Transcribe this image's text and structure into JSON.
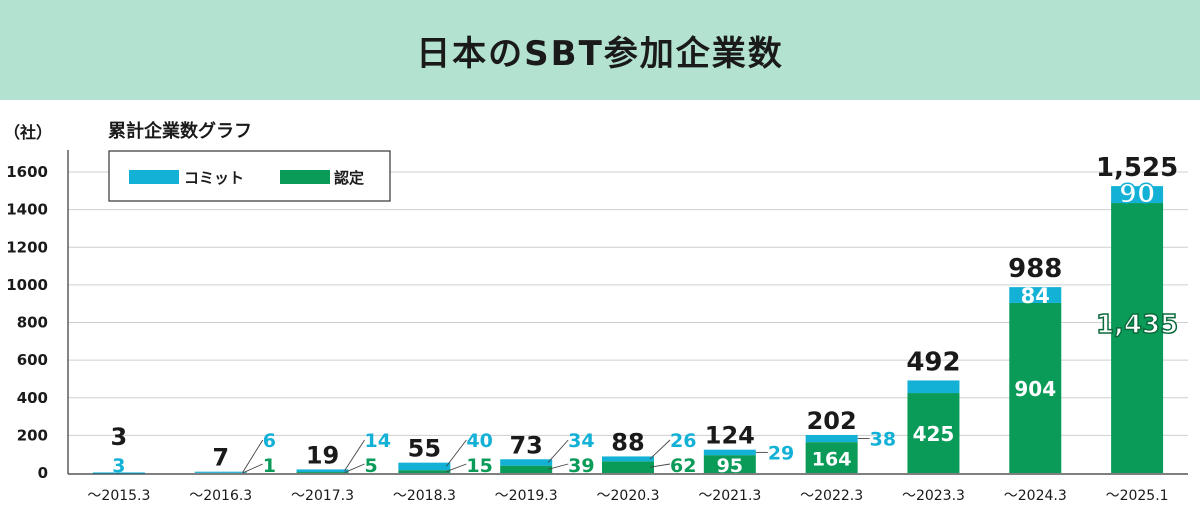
{
  "header": {
    "title": "日本のSBT参加企業数"
  },
  "chart_data": {
    "type": "bar",
    "stacked": true,
    "title": "日本のSBT参加企業数",
    "subtitle": "累計企業数グラフ",
    "ylabel": "（社）",
    "ylim": [
      0,
      1700
    ],
    "yticks": [
      0,
      200,
      400,
      600,
      800,
      1000,
      1200,
      1400,
      1600
    ],
    "grid": true,
    "legend_position": "top-left",
    "categories": [
      "～2015.3",
      "～2016.3",
      "～2017.3",
      "～2018.3",
      "～2019.3",
      "～2020.3",
      "～2021.3",
      "～2022.3",
      "～2023.3",
      "～2024.3",
      "～2025.1"
    ],
    "series": [
      {
        "name": "認定",
        "color": "#0a9b59",
        "values": [
          0,
          1,
          5,
          15,
          39,
          62,
          95,
          164,
          425,
          904,
          1435
        ]
      },
      {
        "name": "コミット",
        "color": "#14b1d6",
        "values": [
          3,
          6,
          14,
          40,
          34,
          26,
          29,
          38,
          67,
          84,
          90
        ]
      }
    ],
    "segment_labels": {
      "認定": [
        "",
        "1",
        "5",
        "15",
        "39",
        "62",
        "95",
        "164",
        "425",
        "904",
        "1,435"
      ],
      "コミット": [
        "3",
        "6",
        "14",
        "40",
        "34",
        "26",
        "29",
        "38",
        "",
        "84",
        "90"
      ]
    },
    "totals": [
      3,
      7,
      19,
      55,
      73,
      88,
      124,
      202,
      492,
      988,
      1525
    ],
    "total_labels": [
      "3",
      "7",
      "19",
      "55",
      "73",
      "88",
      "124",
      "202",
      "492",
      "988",
      "1,525"
    ]
  }
}
